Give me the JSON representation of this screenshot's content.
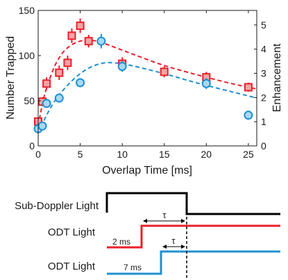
{
  "chart_data": {
    "type": "scatter",
    "xlabel": "Overlap Time [ms]",
    "ylabel": "Number Trapped",
    "y2label": "Enhancement",
    "xlim": [
      0,
      26
    ],
    "ylim": [
      0,
      150
    ],
    "y2lim": [
      0,
      5.6
    ],
    "x_ticks": [
      0,
      5,
      10,
      15,
      20,
      25
    ],
    "y_ticks": [
      0,
      50,
      100,
      150
    ],
    "y2_ticks": [
      0,
      1,
      2,
      3,
      4,
      5
    ],
    "series": [
      {
        "color": "#e8202a",
        "fill": "#f6a3a8",
        "marker": "square",
        "points": [
          {
            "x": 0.0,
            "y": 27,
            "err": 3
          },
          {
            "x": 0.5,
            "y": 49,
            "err": 5
          },
          {
            "x": 1.0,
            "y": 69,
            "err": 7
          },
          {
            "x": 2.5,
            "y": 81,
            "err": 8
          },
          {
            "x": 3.5,
            "y": 92,
            "err": 8
          },
          {
            "x": 4.0,
            "y": 122,
            "err": 8
          },
          {
            "x": 5.0,
            "y": 133,
            "err": 8
          },
          {
            "x": 6.0,
            "y": 116,
            "err": 7
          },
          {
            "x": 10.0,
            "y": 91,
            "err": 7
          },
          {
            "x": 15.0,
            "y": 82,
            "err": 6
          },
          {
            "x": 20.0,
            "y": 76,
            "err": 6
          },
          {
            "x": 25.0,
            "y": 65,
            "err": 5
          }
        ],
        "fit": [
          {
            "x": 0.0,
            "y": 22
          },
          {
            "x": 0.5,
            "y": 46
          },
          {
            "x": 1.0,
            "y": 64
          },
          {
            "x": 2.0,
            "y": 89
          },
          {
            "x": 3.0,
            "y": 104
          },
          {
            "x": 4.0,
            "y": 112
          },
          {
            "x": 5.0,
            "y": 116
          },
          {
            "x": 6.0,
            "y": 117
          },
          {
            "x": 7.0,
            "y": 116
          },
          {
            "x": 8.0,
            "y": 113
          },
          {
            "x": 10.0,
            "y": 106
          },
          {
            "x": 12.0,
            "y": 99
          },
          {
            "x": 15.0,
            "y": 89
          },
          {
            "x": 18.0,
            "y": 81
          },
          {
            "x": 20.0,
            "y": 76
          },
          {
            "x": 23.0,
            "y": 69
          },
          {
            "x": 26.0,
            "y": 63
          }
        ]
      },
      {
        "color": "#1f8fd0",
        "fill": "#a9d8f2",
        "marker": "circle",
        "points": [
          {
            "x": 0.0,
            "y": 19,
            "err": 3
          },
          {
            "x": 0.5,
            "y": 22,
            "err": 4
          },
          {
            "x": 1.0,
            "y": 47,
            "err": 5
          },
          {
            "x": 2.5,
            "y": 53,
            "err": 5
          },
          {
            "x": 5.0,
            "y": 70,
            "err": 5
          },
          {
            "x": 7.5,
            "y": 116,
            "err": 8
          },
          {
            "x": 10.0,
            "y": 88,
            "err": 6
          },
          {
            "x": 20.0,
            "y": 69,
            "err": 6
          },
          {
            "x": 25.0,
            "y": 34,
            "err": 5
          }
        ],
        "fit": [
          {
            "x": 0.0,
            "y": 14
          },
          {
            "x": 1.0,
            "y": 34
          },
          {
            "x": 2.0,
            "y": 50
          },
          {
            "x": 3.0,
            "y": 62
          },
          {
            "x": 4.0,
            "y": 72
          },
          {
            "x": 5.0,
            "y": 80
          },
          {
            "x": 6.0,
            "y": 86
          },
          {
            "x": 7.0,
            "y": 90
          },
          {
            "x": 8.0,
            "y": 92
          },
          {
            "x": 9.0,
            "y": 92
          },
          {
            "x": 10.0,
            "y": 91
          },
          {
            "x": 12.0,
            "y": 87
          },
          {
            "x": 15.0,
            "y": 80
          },
          {
            "x": 18.0,
            "y": 72
          },
          {
            "x": 20.0,
            "y": 67
          },
          {
            "x": 23.0,
            "y": 60
          },
          {
            "x": 26.0,
            "y": 53
          }
        ]
      }
    ]
  },
  "timing_diagram": {
    "rows": [
      {
        "label": "Sub-Doppler Light",
        "color": "#000000"
      },
      {
        "label": "ODT Light",
        "color": "#e8202a",
        "pre_label": "2 ms"
      },
      {
        "label": "ODT Light",
        "color": "#1f8fd0",
        "pre_label": "7 ms"
      }
    ],
    "tau_symbol": "τ"
  }
}
